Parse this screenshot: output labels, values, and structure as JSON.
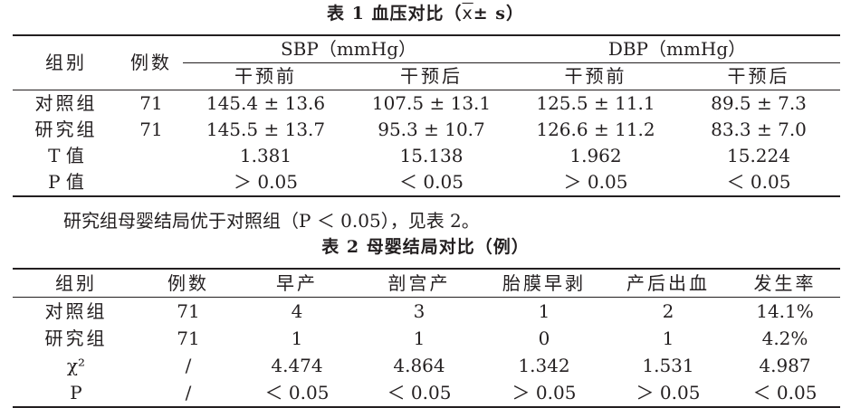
{
  "table1": {
    "caption_prefix": "表 1  血压对比（",
    "caption_xbar": "x",
    "caption_suffix": "± s）",
    "header": {
      "group": "组别",
      "count": "例数",
      "sbp": "SBP（mmHg）",
      "dbp": "DBP（mmHg）",
      "sub": [
        "干预前",
        "干预后",
        "干预前",
        "干预后"
      ]
    },
    "rows": [
      {
        "label": "对照组",
        "count": "71",
        "values": [
          "145.4 ± 13.6",
          "107.5 ± 13.1",
          "125.5 ± 11.1",
          "89.5 ± 7.3"
        ]
      },
      {
        "label": "研究组",
        "count": "71",
        "values": [
          "145.5 ± 13.7",
          "95.3 ± 10.7",
          "126.6 ± 11.2",
          "83.3 ± 7.0"
        ]
      },
      {
        "label": "T 值",
        "count": "",
        "values": [
          "1.381",
          "15.138",
          "1.962",
          "15.224"
        ]
      },
      {
        "label": "P 值",
        "count": "",
        "values": [
          "＞ 0.05",
          "＜ 0.05",
          "＞ 0.05",
          "＜ 0.05"
        ]
      }
    ]
  },
  "sentence": "研究组母婴结局优于对照组（P ＜ 0.05），见表 2。",
  "table2": {
    "caption": "表 2  母婴结局对比（例）",
    "headers": [
      "组别",
      "例数",
      "早产",
      "剖宫产",
      "胎膜早剥",
      "产后出血",
      "发生率"
    ],
    "rows": [
      [
        "对照组",
        "71",
        "4",
        "3",
        "1",
        "2",
        "14.1%"
      ],
      [
        "研究组",
        "71",
        "1",
        "1",
        "0",
        "1",
        "4.2%"
      ],
      [
        "χ²",
        "/",
        "4.474",
        "4.864",
        "1.342",
        "1.531",
        "4.987"
      ],
      [
        "P",
        "/",
        "＜ 0.05",
        "＜ 0.05",
        "＞ 0.05",
        "＞ 0.05",
        "＜ 0.05"
      ]
    ]
  }
}
